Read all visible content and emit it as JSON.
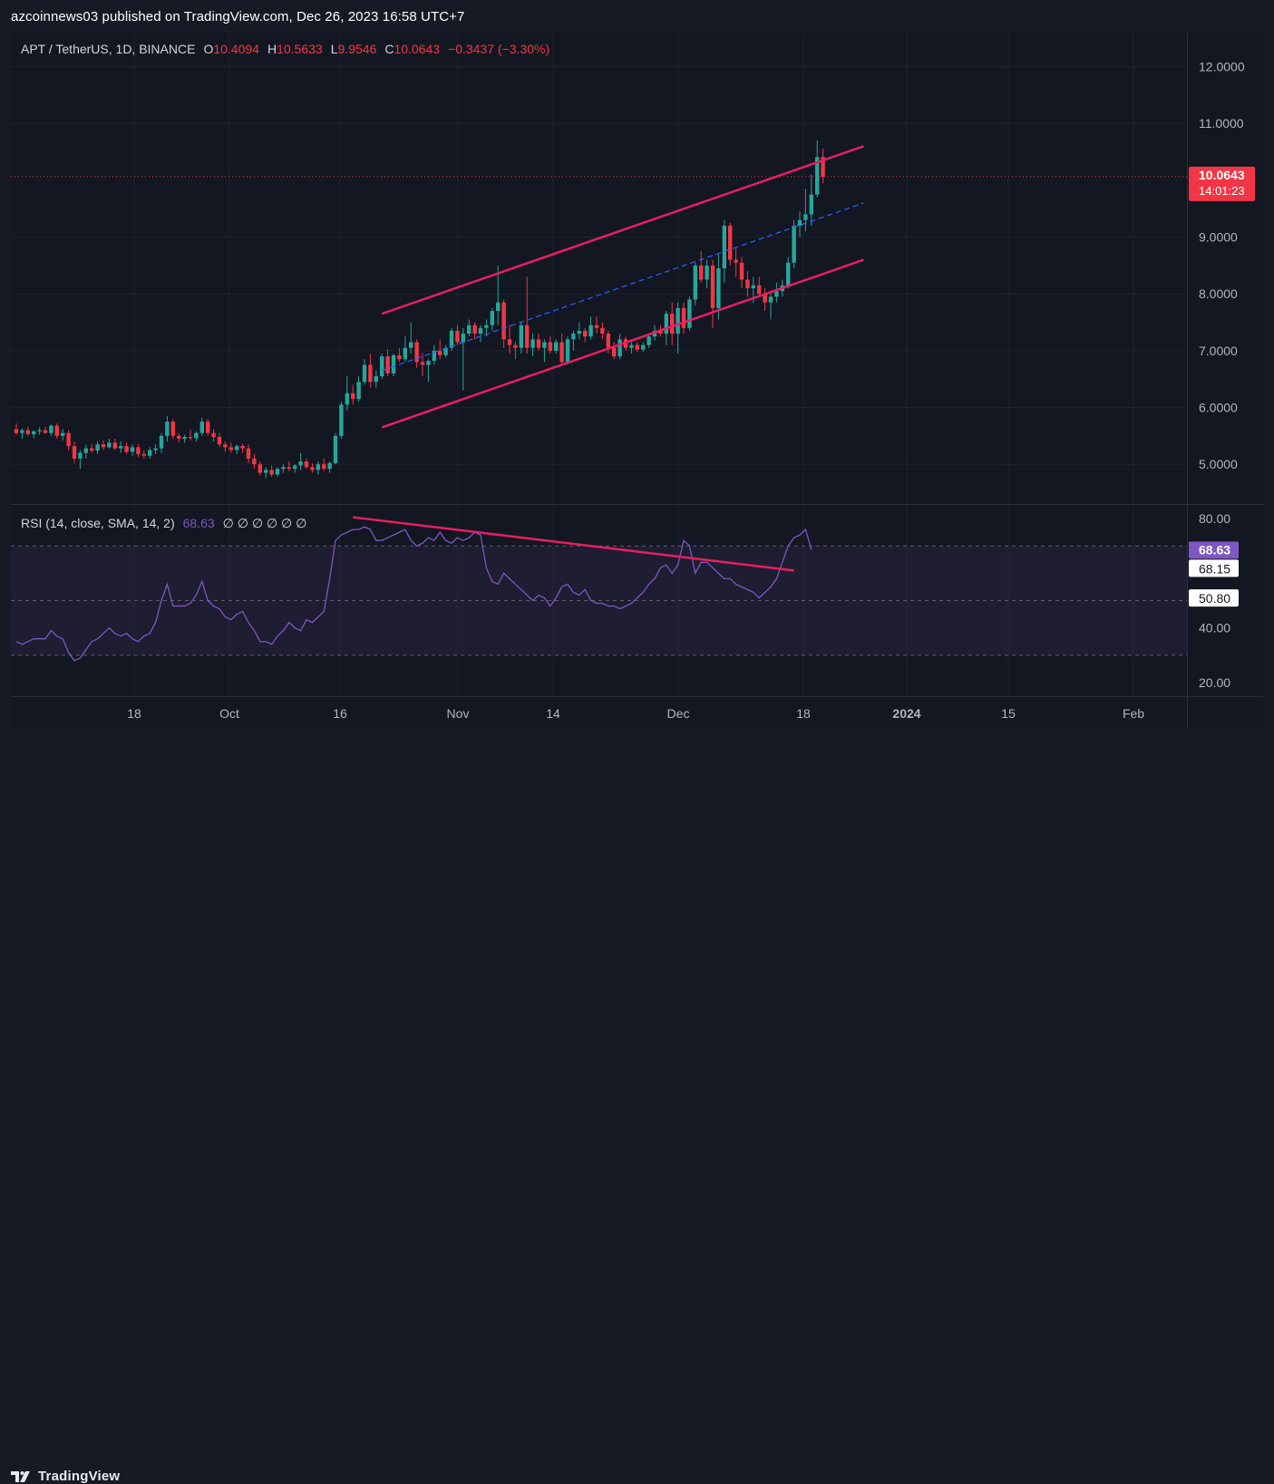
{
  "header": {
    "text": "azcoinnews03 published on TradingView.com, Dec 26, 2023 16:58 UTC+7"
  },
  "footer": {
    "logo_text": "TradingView",
    "logo_icon": "tradingview-logo-icon"
  },
  "colors": {
    "up": "#26a69a",
    "down": "#f23645",
    "pattern": "#e91e63",
    "midline": "#2962ff",
    "rsi": "#7e57c2",
    "grid": "#1e222d",
    "text": "#b2b5be"
  },
  "chart_data": {
    "type": "candlestick",
    "symbol_line": {
      "symbol": "APT / TetherUS, 1D, BINANCE",
      "o_label": "O",
      "o_value": "10.4094",
      "h_label": "H",
      "h_value": "10.5633",
      "l_label": "L",
      "l_value": "9.9546",
      "c_label": "C",
      "c_value": "10.0643",
      "change": "−0.3437 (−3.30%)"
    },
    "price_axis": {
      "ticks": [
        "12.0000",
        "11.0000",
        "9.0000",
        "8.0000",
        "7.0000",
        "6.0000",
        "5.0000"
      ],
      "range": [
        4.3,
        12.6
      ]
    },
    "time_axis": {
      "ticks": [
        "18",
        "Oct",
        "16",
        "Nov",
        "14",
        "Dec",
        "18",
        "2024",
        "15",
        "Feb"
      ]
    },
    "last_price": {
      "value": "10.0643",
      "countdown": "14:01:23"
    },
    "candles": [
      [
        5.62,
        5.72,
        5.52,
        5.55
      ],
      [
        5.55,
        5.63,
        5.45,
        5.6
      ],
      [
        5.6,
        5.66,
        5.5,
        5.53
      ],
      [
        5.53,
        5.6,
        5.46,
        5.58
      ],
      [
        5.58,
        5.65,
        5.52,
        5.6
      ],
      [
        5.6,
        5.66,
        5.54,
        5.55
      ],
      [
        5.55,
        5.7,
        5.5,
        5.68
      ],
      [
        5.68,
        5.72,
        5.45,
        5.5
      ],
      [
        5.5,
        5.62,
        5.42,
        5.55
      ],
      [
        5.55,
        5.6,
        5.25,
        5.32
      ],
      [
        5.32,
        5.4,
        5.02,
        5.1
      ],
      [
        5.1,
        5.25,
        4.92,
        5.2
      ],
      [
        5.2,
        5.35,
        5.1,
        5.28
      ],
      [
        5.28,
        5.36,
        5.2,
        5.24
      ],
      [
        5.24,
        5.4,
        5.18,
        5.35
      ],
      [
        5.35,
        5.42,
        5.25,
        5.3
      ],
      [
        5.3,
        5.45,
        5.28,
        5.38
      ],
      [
        5.38,
        5.45,
        5.25,
        5.28
      ],
      [
        5.28,
        5.4,
        5.2,
        5.32
      ],
      [
        5.32,
        5.38,
        5.18,
        5.22
      ],
      [
        5.22,
        5.35,
        5.15,
        5.3
      ],
      [
        5.3,
        5.36,
        5.12,
        5.18
      ],
      [
        5.18,
        5.25,
        5.1,
        5.15
      ],
      [
        5.15,
        5.3,
        5.1,
        5.25
      ],
      [
        5.25,
        5.35,
        5.18,
        5.28
      ],
      [
        5.28,
        5.55,
        5.2,
        5.5
      ],
      [
        5.5,
        5.85,
        5.4,
        5.75
      ],
      [
        5.75,
        5.8,
        5.45,
        5.5
      ],
      [
        5.5,
        5.55,
        5.38,
        5.45
      ],
      [
        5.45,
        5.52,
        5.38,
        5.48
      ],
      [
        5.48,
        5.6,
        5.42,
        5.46
      ],
      [
        5.46,
        5.58,
        5.4,
        5.55
      ],
      [
        5.55,
        5.82,
        5.5,
        5.75
      ],
      [
        5.75,
        5.8,
        5.5,
        5.55
      ],
      [
        5.55,
        5.62,
        5.4,
        5.48
      ],
      [
        5.48,
        5.55,
        5.3,
        5.35
      ],
      [
        5.35,
        5.4,
        5.22,
        5.3
      ],
      [
        5.3,
        5.38,
        5.2,
        5.25
      ],
      [
        5.25,
        5.35,
        5.18,
        5.32
      ],
      [
        5.32,
        5.36,
        5.2,
        5.28
      ],
      [
        5.28,
        5.35,
        5.02,
        5.1
      ],
      [
        5.1,
        5.18,
        4.92,
        5.0
      ],
      [
        5.0,
        5.05,
        4.8,
        4.85
      ],
      [
        4.85,
        4.95,
        4.75,
        4.9
      ],
      [
        4.9,
        4.98,
        4.78,
        4.82
      ],
      [
        4.82,
        4.95,
        4.78,
        4.92
      ],
      [
        4.92,
        5.0,
        4.85,
        4.95
      ],
      [
        4.95,
        5.05,
        4.88,
        4.92
      ],
      [
        4.92,
        5.0,
        4.85,
        4.98
      ],
      [
        4.98,
        5.2,
        4.9,
        5.05
      ],
      [
        5.05,
        5.1,
        4.92,
        4.95
      ],
      [
        4.95,
        5.02,
        4.85,
        4.9
      ],
      [
        4.9,
        5.05,
        4.82,
        5.0
      ],
      [
        5.0,
        5.1,
        4.88,
        4.92
      ],
      [
        4.92,
        5.05,
        4.85,
        5.02
      ],
      [
        5.02,
        5.55,
        5.0,
        5.5
      ],
      [
        5.5,
        6.1,
        5.45,
        6.05
      ],
      [
        6.05,
        6.55,
        5.95,
        6.25
      ],
      [
        6.25,
        6.4,
        6.05,
        6.15
      ],
      [
        6.15,
        6.55,
        6.1,
        6.45
      ],
      [
        6.45,
        6.85,
        6.4,
        6.75
      ],
      [
        6.75,
        6.95,
        6.35,
        6.45
      ],
      [
        6.45,
        6.65,
        6.35,
        6.55
      ],
      [
        6.55,
        6.95,
        6.5,
        6.9
      ],
      [
        6.9,
        7.02,
        6.55,
        6.6
      ],
      [
        6.6,
        6.95,
        6.55,
        6.92
      ],
      [
        6.92,
        7.05,
        6.8,
        6.85
      ],
      [
        6.85,
        7.25,
        6.8,
        7.05
      ],
      [
        7.05,
        7.5,
        6.95,
        7.15
      ],
      [
        7.15,
        7.2,
        6.7,
        6.8
      ],
      [
        6.8,
        6.95,
        6.55,
        6.75
      ],
      [
        6.75,
        6.85,
        6.45,
        6.82
      ],
      [
        6.82,
        7.1,
        6.75,
        7.0
      ],
      [
        7.0,
        7.2,
        6.85,
        6.92
      ],
      [
        6.92,
        7.1,
        6.88,
        7.05
      ],
      [
        7.05,
        7.4,
        7.0,
        7.35
      ],
      [
        7.35,
        7.45,
        7.1,
        7.15
      ],
      [
        7.15,
        7.4,
        6.3,
        7.3
      ],
      [
        7.3,
        7.55,
        7.25,
        7.45
      ],
      [
        7.45,
        7.5,
        7.2,
        7.3
      ],
      [
        7.3,
        7.45,
        7.15,
        7.4
      ],
      [
        7.4,
        7.55,
        7.25,
        7.45
      ],
      [
        7.45,
        7.75,
        7.35,
        7.7
      ],
      [
        7.7,
        8.5,
        7.45,
        7.85
      ],
      [
        7.85,
        7.9,
        7.05,
        7.2
      ],
      [
        7.2,
        7.45,
        6.95,
        7.1
      ],
      [
        7.1,
        7.15,
        6.85,
        7.05
      ],
      [
        7.05,
        7.5,
        6.95,
        7.45
      ],
      [
        7.45,
        8.3,
        6.95,
        7.05
      ],
      [
        7.05,
        7.3,
        6.9,
        7.2
      ],
      [
        7.2,
        7.3,
        7.0,
        7.05
      ],
      [
        7.05,
        7.2,
        6.8,
        7.15
      ],
      [
        7.15,
        7.25,
        6.95,
        7.0
      ],
      [
        7.0,
        7.2,
        6.95,
        7.15
      ],
      [
        7.15,
        7.3,
        6.75,
        6.8
      ],
      [
        6.8,
        7.25,
        6.75,
        7.2
      ],
      [
        7.2,
        7.35,
        7.0,
        7.3
      ],
      [
        7.3,
        7.5,
        7.2,
        7.35
      ],
      [
        7.35,
        7.4,
        7.15,
        7.25
      ],
      [
        7.25,
        7.6,
        7.2,
        7.45
      ],
      [
        7.45,
        7.6,
        7.3,
        7.4
      ],
      [
        7.4,
        7.5,
        7.2,
        7.3
      ],
      [
        7.3,
        7.35,
        6.95,
        7.05
      ],
      [
        7.05,
        7.15,
        6.85,
        6.9
      ],
      [
        6.9,
        7.3,
        6.85,
        7.2
      ],
      [
        7.2,
        7.25,
        7.0,
        7.05
      ],
      [
        7.05,
        7.2,
        6.95,
        7.1
      ],
      [
        7.1,
        7.15,
        6.98,
        7.02
      ],
      [
        7.02,
        7.15,
        6.98,
        7.1
      ],
      [
        7.1,
        7.3,
        7.05,
        7.25
      ],
      [
        7.25,
        7.45,
        7.18,
        7.35
      ],
      [
        7.35,
        7.45,
        7.25,
        7.3
      ],
      [
        7.3,
        7.7,
        7.1,
        7.65
      ],
      [
        7.65,
        7.85,
        7.1,
        7.3
      ],
      [
        7.3,
        7.85,
        6.95,
        7.75
      ],
      [
        7.75,
        7.85,
        7.3,
        7.4
      ],
      [
        7.4,
        7.95,
        7.35,
        7.9
      ],
      [
        7.9,
        8.55,
        7.8,
        8.5
      ],
      [
        8.5,
        8.75,
        8.2,
        8.25
      ],
      [
        8.25,
        8.6,
        8.1,
        8.5
      ],
      [
        8.5,
        8.6,
        7.4,
        7.75
      ],
      [
        7.75,
        8.7,
        7.55,
        8.45
      ],
      [
        8.45,
        9.3,
        8.2,
        9.2
      ],
      [
        9.2,
        9.25,
        8.5,
        8.6
      ],
      [
        8.6,
        8.8,
        8.3,
        8.55
      ],
      [
        8.55,
        8.65,
        8.1,
        8.25
      ],
      [
        8.25,
        8.4,
        7.95,
        8.1
      ],
      [
        8.1,
        8.3,
        7.85,
        8.15
      ],
      [
        8.15,
        8.3,
        7.95,
        8.0
      ],
      [
        8.0,
        8.1,
        7.7,
        7.85
      ],
      [
        7.85,
        8.05,
        7.55,
        7.95
      ],
      [
        7.95,
        8.2,
        7.85,
        8.05
      ],
      [
        8.05,
        8.25,
        7.95,
        8.15
      ],
      [
        8.15,
        8.65,
        8.1,
        8.55
      ],
      [
        8.55,
        9.3,
        8.45,
        9.2
      ],
      [
        9.2,
        9.45,
        9.0,
        9.3
      ],
      [
        9.3,
        9.85,
        9.1,
        9.4
      ],
      [
        9.4,
        10.1,
        9.2,
        9.75
      ],
      [
        9.75,
        10.7,
        9.7,
        10.41
      ],
      [
        10.41,
        10.56,
        9.95,
        10.06
      ]
    ],
    "channel": {
      "upper": [
        [
          63,
          7.65
        ],
        [
          146,
          10.6
        ]
      ],
      "lower": [
        [
          63,
          5.65
        ],
        [
          146,
          8.6
        ]
      ],
      "middle": [
        [
          63,
          6.65
        ],
        [
          146,
          9.6
        ]
      ]
    },
    "rsi": {
      "title": "RSI (14, close, SMA, 14, 2)",
      "value": "68.63",
      "extra": "∅ ∅ ∅ ∅ ∅ ∅",
      "labels": {
        "rsi": "68.63",
        "ma": "68.15",
        "mid": "50.80"
      },
      "axis_ticks": [
        "80.00",
        "40.00",
        "20.00"
      ],
      "range": [
        15,
        85
      ],
      "upper_band": 70,
      "lower_band": 30,
      "middle": 50,
      "values": [
        35,
        34,
        35,
        36,
        36,
        36,
        39,
        37,
        36,
        31,
        28,
        29,
        32,
        35,
        36,
        38,
        40,
        38,
        37,
        38,
        36,
        35,
        37,
        38,
        42,
        50,
        56,
        48,
        48,
        48,
        49,
        52,
        57,
        50,
        48,
        47,
        44,
        43,
        45,
        46,
        42,
        39,
        35,
        35,
        34,
        37,
        39,
        42,
        40,
        39,
        43,
        42,
        44,
        46,
        58,
        72,
        74,
        75,
        76,
        76,
        77,
        76,
        72,
        72,
        73,
        74,
        75,
        76,
        72,
        70,
        71,
        73,
        72,
        75,
        72,
        71,
        73,
        72,
        73,
        75,
        74,
        62,
        57,
        56,
        60,
        58,
        56,
        54,
        52,
        50,
        52,
        51,
        48,
        51,
        55,
        56,
        53,
        52,
        54,
        50,
        49,
        49,
        48,
        48,
        47,
        48,
        49,
        51,
        53,
        56,
        58,
        62,
        63,
        60,
        63,
        72,
        70,
        60,
        64,
        64,
        62,
        60,
        58,
        58,
        56,
        55,
        54,
        53,
        51,
        53,
        55,
        58,
        64,
        70,
        73,
        74,
        76,
        68.63
      ],
      "trendline": [
        [
          58,
          80.5
        ],
        [
          134,
          61
        ]
      ]
    }
  }
}
